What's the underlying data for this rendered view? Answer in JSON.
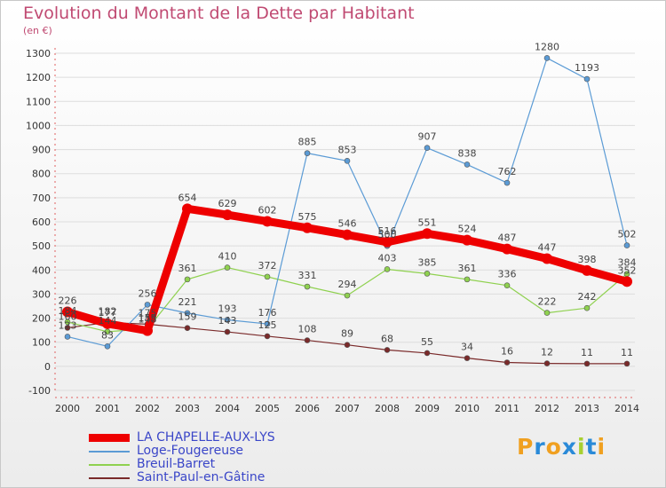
{
  "title": "Evolution du Montant de la Dette par Habitant",
  "unit_label": "(en €)",
  "logo_text": "Proxiti",
  "chart_data": {
    "type": "line",
    "title": "Evolution du Montant de la Dette par Habitant",
    "subtitle": "(en €)",
    "xlabel": "",
    "ylabel": "",
    "x": [
      "2000",
      "2001",
      "2002",
      "2003",
      "2004",
      "2005",
      "2006",
      "2007",
      "2008",
      "2009",
      "2010",
      "2011",
      "2012",
      "2013",
      "2014"
    ],
    "ylim": [
      -100,
      1300
    ],
    "yticks": [
      -100,
      0,
      100,
      200,
      300,
      400,
      500,
      600,
      700,
      800,
      900,
      1000,
      1100,
      1200,
      1300
    ],
    "ytick_labels": [
      "-100",
      "0",
      "100",
      "200",
      "300",
      "400",
      "500",
      "600",
      "700",
      "800",
      "900",
      "1000",
      "1100",
      "1200",
      "1300"
    ],
    "grid": "horizontal",
    "legend_position": "bottom-left",
    "series": [
      {
        "name": "LA CHAPELLE-AUX-LYS",
        "color": "#ee0000",
        "width": 9,
        "marker": 6,
        "values": [
          226,
          177,
          148,
          654,
          629,
          602,
          575,
          546,
          516,
          551,
          524,
          487,
          447,
          398,
          352
        ],
        "labels": [
          "226",
          "177",
          "148",
          "654",
          "629",
          "602",
          "575",
          "546",
          "516",
          "551",
          "524",
          "487",
          "447",
          "398",
          "352"
        ]
      },
      {
        "name": "Loge-Fougereuse",
        "color": "#5b9bd5",
        "width": 1.2,
        "marker": 3,
        "values": [
          123,
          83,
          256,
          221,
          193,
          176,
          885,
          853,
          500,
          907,
          838,
          762,
          1280,
          1193,
          502
        ],
        "labels": [
          "123",
          "83",
          "256",
          "221",
          "193",
          "176",
          "885",
          "853",
          "500",
          "907",
          "838",
          "762",
          "1280",
          "1193",
          "502"
        ]
      },
      {
        "name": "Breuil-Barret",
        "color": "#8fd14f",
        "width": 1.2,
        "marker": 3,
        "values": [
          184,
          144,
          155,
          361,
          410,
          372,
          331,
          294,
          403,
          385,
          361,
          336,
          222,
          242,
          384
        ],
        "labels": [
          "184",
          "144",
          "155",
          "361",
          "410",
          "372",
          "331",
          "294",
          "403",
          "385",
          "361",
          "336",
          "222",
          "242",
          "384"
        ]
      },
      {
        "name": "Saint-Paul-en-Gâtine",
        "color": "#7a2a2a",
        "width": 1.2,
        "marker": 3,
        "values": [
          160,
          182,
          175,
          159,
          143,
          125,
          108,
          89,
          68,
          55,
          34,
          16,
          12,
          11,
          11
        ],
        "labels": [
          "160",
          "182",
          "175",
          "159",
          "143",
          "125",
          "108",
          "89",
          "68",
          "55",
          "34",
          "16",
          "12",
          "11",
          "11"
        ]
      }
    ]
  }
}
